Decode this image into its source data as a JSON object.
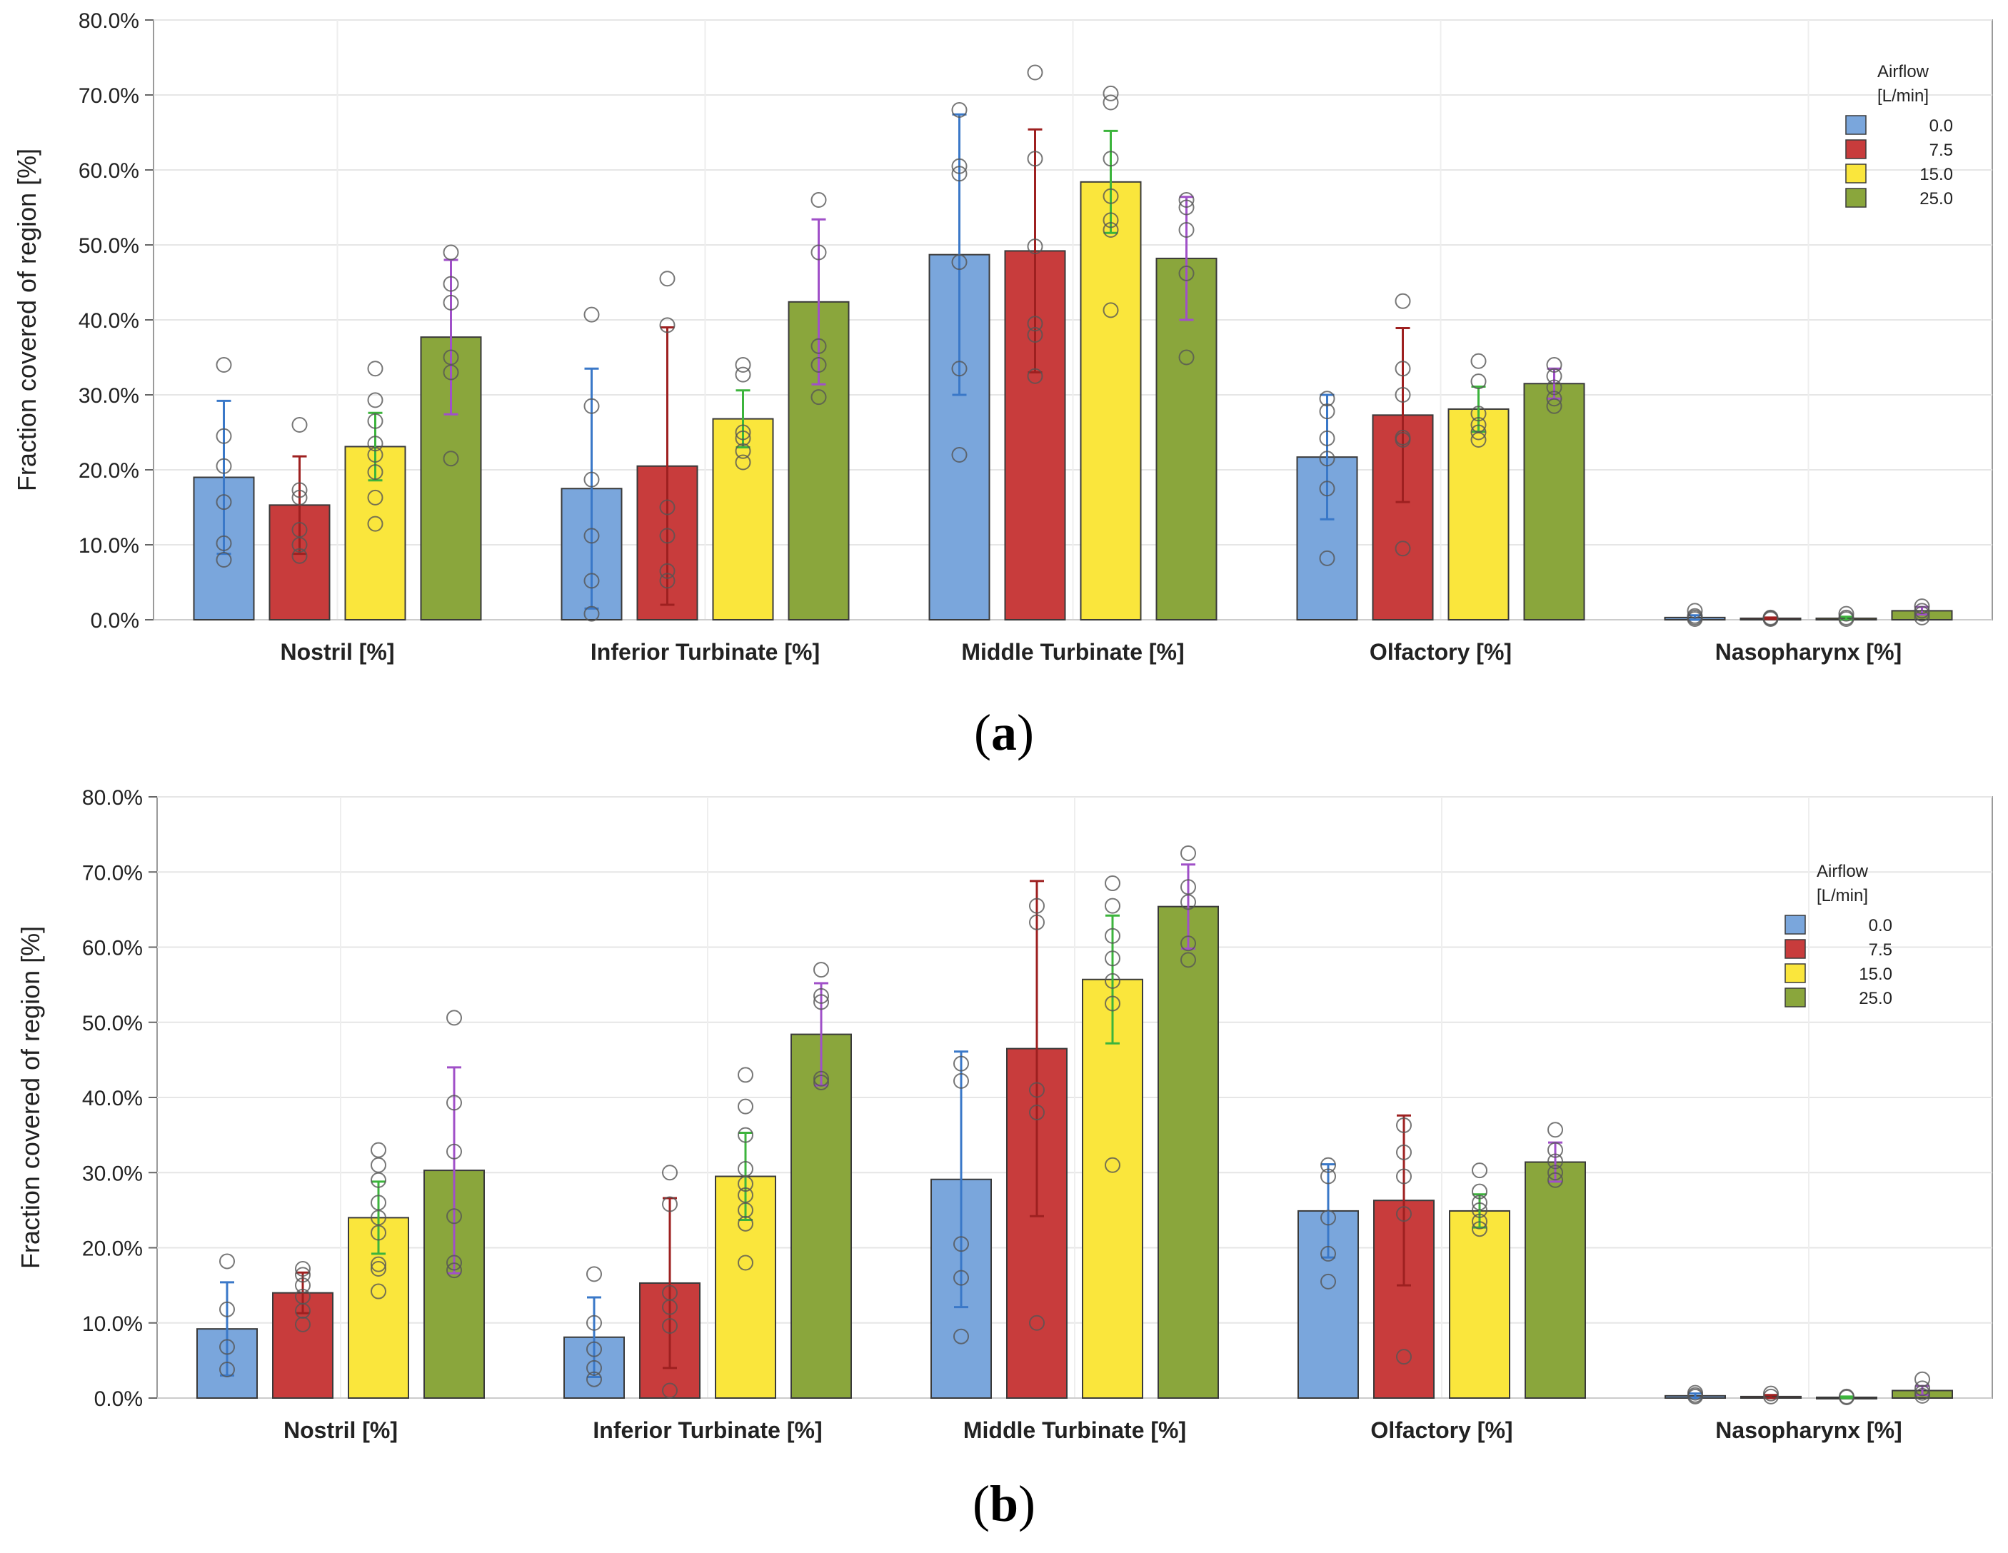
{
  "chart_data": [
    {
      "type": "bar",
      "panel_label": "a",
      "ylabel": "Fraction covered of region [%]",
      "ylim": [
        0,
        80
      ],
      "yticks": [
        "0.0%",
        "10.0%",
        "20.0%",
        "30.0%",
        "40.0%",
        "50.0%",
        "60.0%",
        "70.0%",
        "80.0%"
      ],
      "categories": [
        "Nostril [%]",
        "Inferior Turbinate [%]",
        "Middle Turbinate [%]",
        "Olfactory [%]",
        "Nasopharynx [%]"
      ],
      "legend": {
        "title_line1": "Airflow",
        "title_line2": "[L/min]",
        "placement": "top-right"
      },
      "grid": true,
      "series": [
        {
          "name": "0.0",
          "color": "#7aa6dc",
          "errcolor": "#3a78c8",
          "values": [
            19,
            17.5,
            48.7,
            21.7,
            0.3
          ],
          "err": [
            10.2,
            16,
            18.7,
            8.3,
            0.3
          ],
          "points": [
            [
              34,
              24.5,
              20.5,
              15.7,
              10.2,
              8
            ],
            [
              40.7,
              28.5,
              18.7,
              11.2,
              5.2,
              0.8
            ],
            [
              68,
              60.5,
              59.5,
              47.7,
              33.5,
              22
            ],
            [
              29.5,
              27.8,
              24.2,
              21.5,
              17.5,
              8.2
            ],
            [
              1.2,
              0.5,
              0.3,
              0.1
            ]
          ]
        },
        {
          "name": "7.5",
          "color": "#c83c3c",
          "errcolor": "#9e2020",
          "values": [
            15.3,
            20.5,
            49.2,
            27.3,
            0.2
          ],
          "err": [
            6.5,
            18.5,
            16.2,
            11.6,
            0.1
          ],
          "points": [
            [
              26,
              17.3,
              16.3,
              12,
              10,
              8.5
            ],
            [
              45.5,
              39.3,
              15,
              11.2,
              6.5,
              5.2
            ],
            [
              73,
              61.5,
              49.8,
              39.5,
              38,
              32.5
            ],
            [
              42.5,
              33.5,
              30,
              24.3,
              24,
              9.5
            ],
            [
              0.3,
              0.2,
              0.1
            ]
          ]
        },
        {
          "name": "15.0",
          "color": "#fae63c",
          "errcolor": "#3cb43c",
          "values": [
            23.1,
            26.8,
            58.4,
            28.1,
            0.2
          ],
          "err": [
            4.5,
            3.8,
            6.8,
            3,
            0.2
          ],
          "points": [
            [
              33.5,
              29.3,
              26.5,
              23.5,
              22,
              19.7,
              16.3,
              12.8
            ],
            [
              34,
              32.7,
              25,
              24.2,
              22.5,
              21
            ],
            [
              70.2,
              69,
              61.5,
              56.5,
              53.3,
              52,
              41.3
            ],
            [
              34.5,
              31.8,
              27.5,
              26,
              25,
              24
            ],
            [
              0.8,
              0.3,
              0.1
            ]
          ]
        },
        {
          "name": "25.0",
          "color": "#8aa63c",
          "errcolor": "#a050c8",
          "values": [
            37.7,
            42.4,
            48.2,
            31.5,
            1.2
          ],
          "err": [
            10.3,
            11,
            8.2,
            2,
            0.5
          ],
          "points": [
            [
              49,
              44.8,
              42.3,
              35,
              33,
              21.5
            ],
            [
              56,
              49,
              36.5,
              34,
              29.7
            ],
            [
              56,
              55,
              52,
              46.2,
              35
            ],
            [
              34,
              32.5,
              31,
              29.5,
              28.5
            ],
            [
              1.8,
              1.2,
              0.8,
              0.3
            ]
          ]
        }
      ]
    },
    {
      "type": "bar",
      "panel_label": "b",
      "ylabel": "Fraction covered of region [%]",
      "ylim": [
        0,
        80
      ],
      "yticks": [
        "0.0%",
        "10.0%",
        "20.0%",
        "30.0%",
        "40.0%",
        "50.0%",
        "60.0%",
        "70.0%",
        "80.0%"
      ],
      "categories": [
        "Nostril [%]",
        "Inferior Turbinate [%]",
        "Middle Turbinate [%]",
        "Olfactory [%]",
        "Nasopharynx [%]"
      ],
      "legend": {
        "title_line1": "Airflow",
        "title_line2": "[L/min]",
        "placement": "top-right"
      },
      "grid": true,
      "series": [
        {
          "name": "0.0",
          "color": "#7aa6dc",
          "errcolor": "#3a78c8",
          "values": [
            9.2,
            8.1,
            29.1,
            24.9,
            0.3
          ],
          "err": [
            6.2,
            5.3,
            17,
            6.2,
            0.3
          ],
          "points": [
            [
              18.2,
              11.8,
              6.8,
              3.8
            ],
            [
              16.5,
              10,
              6.5,
              4,
              2.5
            ],
            [
              44.5,
              42.2,
              20.5,
              16,
              8.2
            ],
            [
              31,
              29.5,
              24,
              19.2,
              15.5
            ],
            [
              0.7,
              0.4,
              0.2
            ]
          ]
        },
        {
          "name": "7.5",
          "color": "#c83c3c",
          "errcolor": "#9e2020",
          "values": [
            14,
            15.3,
            46.5,
            26.3,
            0.2
          ],
          "err": [
            2.7,
            11.3,
            22.3,
            11.3,
            0.2
          ],
          "points": [
            [
              17.2,
              16.4,
              15,
              13.5,
              11.6,
              9.8
            ],
            [
              30,
              25.8,
              14,
              12.1,
              9.6,
              1
            ],
            [
              65.5,
              63.3,
              41,
              38,
              10
            ],
            [
              36.3,
              32.7,
              29.5,
              24.5,
              5.5
            ],
            [
              0.6,
              0.2
            ]
          ]
        },
        {
          "name": "15.0",
          "color": "#fae63c",
          "errcolor": "#3cb43c",
          "values": [
            24,
            29.5,
            55.7,
            24.9,
            0.1
          ],
          "err": [
            4.8,
            5.8,
            8.5,
            2.2,
            0.1
          ],
          "points": [
            [
              33,
              31,
              29,
              26,
              24,
              22,
              17.8,
              17.2,
              14.2
            ],
            [
              43,
              38.8,
              35,
              30.5,
              28.5,
              27,
              25,
              23.2,
              18
            ],
            [
              68.5,
              65.5,
              61.5,
              58.5,
              55.5,
              52.5,
              31
            ],
            [
              30.3,
              27.5,
              26,
              25,
              23.5,
              22.5
            ],
            [
              0.2,
              0.1
            ]
          ]
        },
        {
          "name": "25.0",
          "color": "#8aa63c",
          "errcolor": "#a050c8",
          "values": [
            30.3,
            48.4,
            65.4,
            31.4,
            1
          ],
          "err": [
            13.7,
            6.8,
            5.6,
            2.6,
            0.6
          ],
          "points": [
            [
              50.6,
              39.3,
              32.8,
              24.2,
              18,
              17
            ],
            [
              57,
              53.5,
              52.7,
              42.5,
              42
            ],
            [
              72.5,
              68,
              66,
              60.5,
              58.3
            ],
            [
              35.7,
              33,
              31.5,
              30,
              29
            ],
            [
              2.5,
              1.3,
              0.7,
              0.3
            ]
          ]
        }
      ]
    }
  ]
}
